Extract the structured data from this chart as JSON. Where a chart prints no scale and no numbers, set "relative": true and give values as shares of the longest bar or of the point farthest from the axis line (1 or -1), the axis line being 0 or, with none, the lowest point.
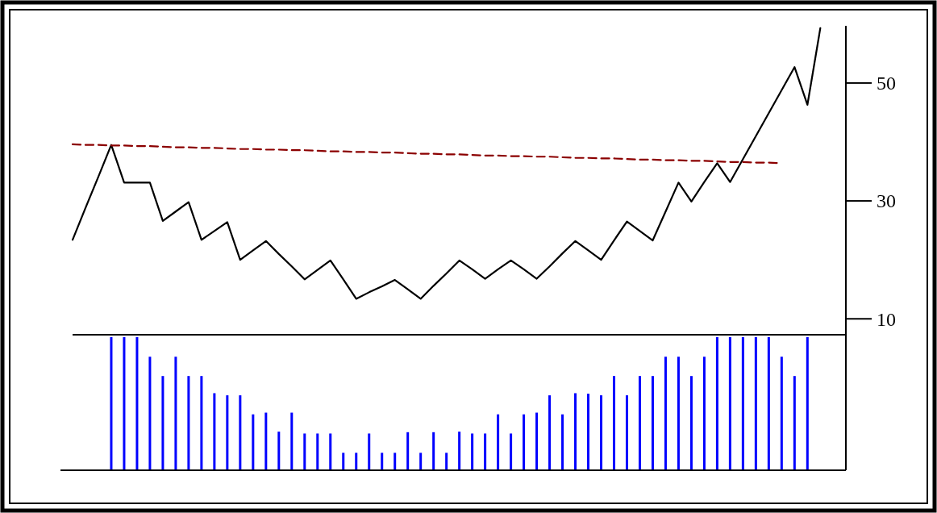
{
  "chart_data": [
    {
      "type": "line",
      "categories": [
        null,
        null,
        null,
        null,
        null,
        null,
        null,
        null,
        null,
        null,
        null,
        null,
        null,
        null,
        null,
        null,
        null,
        null,
        null,
        null,
        null,
        null,
        null,
        null,
        null,
        null,
        null,
        null,
        null,
        null,
        null,
        null,
        null,
        null,
        null,
        null,
        null,
        null,
        null,
        null,
        null,
        null,
        null,
        null,
        null,
        null,
        null,
        null,
        null,
        null,
        null,
        null,
        null,
        null,
        null,
        null,
        null,
        null,
        null
      ],
      "series": [
        {
          "color": "#000000",
          "values": [
            23.4,
            28.8,
            34.1,
            39.5,
            33.1,
            33.1,
            33.1,
            26.6,
            28.2,
            29.8,
            23.4,
            24.9,
            26.4,
            20,
            21.6,
            23.2,
            21,
            18.9,
            16.7,
            18.3,
            19.9,
            16.7,
            13.4,
            14.5,
            15.5,
            16.6,
            15,
            13.4,
            15.6,
            17.7,
            19.9,
            18.4,
            16.8,
            18.4,
            19.9,
            18.4,
            16.8,
            18.9,
            21.1,
            23.2,
            21.6,
            20,
            23.3,
            26.5,
            24.9,
            23.3,
            28.2,
            33.1,
            29.9,
            33.2,
            36.4,
            33.2,
            37.1,
            41,
            44.9,
            48.8,
            52.7,
            46.3,
            59.3
          ]
        },
        {
          "color": "#8b0000",
          "line_style": "dashed",
          "values": [
            39.6,
            39.5,
            39.5,
            39.4,
            39.4,
            39.3,
            39.3,
            39.2,
            39.1,
            39.1,
            39.0,
            39.0,
            38.9,
            38.8,
            38.8,
            38.7,
            38.7,
            38.6,
            38.6,
            38.5,
            38.4,
            38.4,
            38.3,
            38.3,
            38.2,
            38.2,
            38.1,
            38.0,
            38.0,
            37.9,
            37.9,
            37.8,
            37.7,
            37.7,
            37.6,
            37.6,
            37.5,
            37.5,
            37.4,
            37.3,
            37.3,
            37.2,
            37.2,
            37.1,
            37.0,
            37.0,
            36.9,
            36.9,
            36.8,
            36.8,
            36.7,
            36.6,
            36.6,
            36.5,
            36.5,
            36.4,
            null,
            null,
            null
          ]
        }
      ],
      "ylim": [
        7.3,
        59.7
      ],
      "yticks": [
        10,
        30,
        50
      ],
      "tick_labels": "y"
    },
    {
      "type": "bar",
      "relative": true,
      "categories": [
        null,
        null,
        null,
        null,
        null,
        null,
        null,
        null,
        null,
        null,
        null,
        null,
        null,
        null,
        null,
        null,
        null,
        null,
        null,
        null,
        null,
        null,
        null,
        null,
        null,
        null,
        null,
        null,
        null,
        null,
        null,
        null,
        null,
        null,
        null,
        null,
        null,
        null,
        null,
        null,
        null,
        null,
        null,
        null,
        null,
        null,
        null,
        null,
        null,
        null,
        null,
        null,
        null,
        null,
        null,
        null,
        null,
        null,
        null
      ],
      "color": "#0000ff",
      "values": [
        null,
        null,
        null,
        1,
        1,
        1,
        0.853,
        0.708,
        0.853,
        0.708,
        0.708,
        0.579,
        0.563,
        0.563,
        0.42,
        0.433,
        0.29,
        0.433,
        0.276,
        0.276,
        0.276,
        0.131,
        0.131,
        0.276,
        0.131,
        0.131,
        0.286,
        0.131,
        0.286,
        0.131,
        0.29,
        0.276,
        0.276,
        0.42,
        0.276,
        0.42,
        0.433,
        0.563,
        0.42,
        0.579,
        0.575,
        0.563,
        0.708,
        0.563,
        0.708,
        0.708,
        0.853,
        0.853,
        0.708,
        0.853,
        1,
        1,
        1,
        1,
        1,
        0.853,
        0.708,
        1,
        null
      ],
      "tick_labels": false
    }
  ]
}
